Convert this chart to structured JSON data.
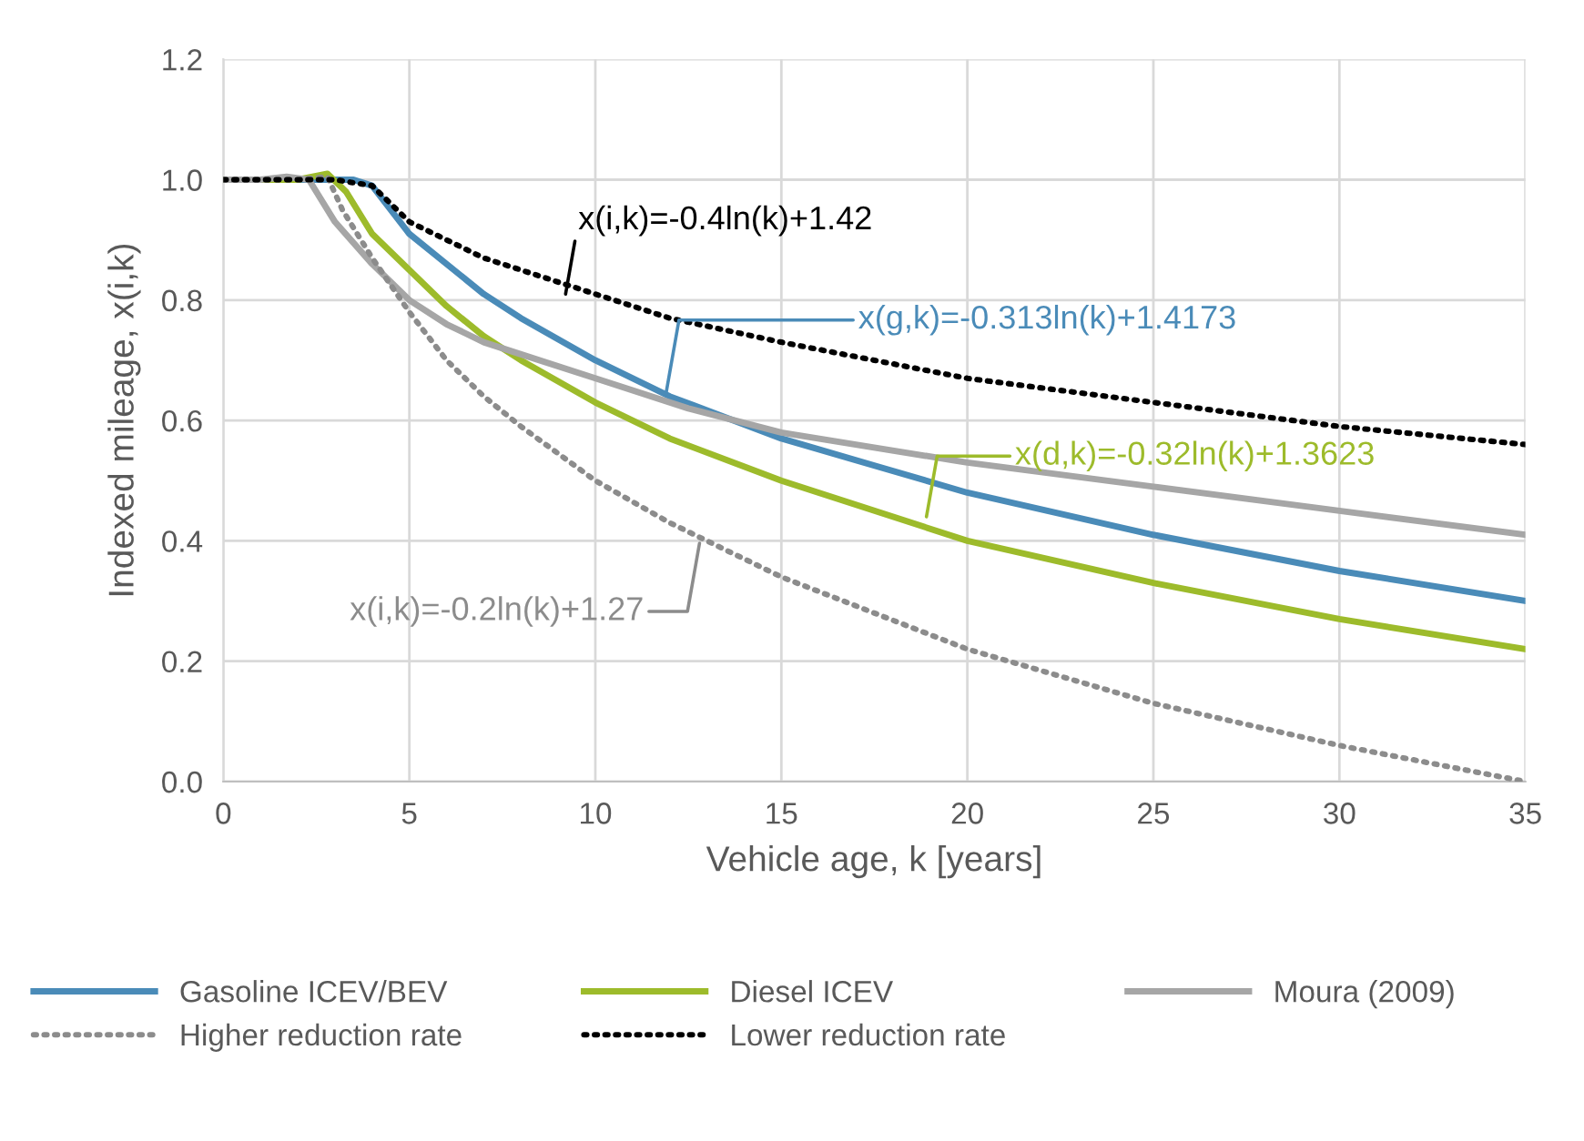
{
  "chart_data": {
    "type": "line",
    "xlabel": "Vehicle age, k [years]",
    "ylabel": "Indexed mileage, x(i,k)",
    "xlim": [
      0,
      35
    ],
    "ylim": [
      0.0,
      1.2
    ],
    "xticks": [
      0,
      5,
      10,
      15,
      20,
      25,
      30,
      35
    ],
    "yticks": [
      {
        "value": 0,
        "label": "0.0"
      },
      0.2,
      0.4,
      0.6,
      0.8,
      {
        "value": 1,
        "label": "1.0"
      },
      1.2
    ],
    "grid": true,
    "legend": "bottom",
    "marker": "none",
    "series": [
      {
        "name": "Gasoline ICEV/BEV",
        "color": "#4a8bb8",
        "line_style": "solid",
        "x": [
          0,
          1,
          2,
          3,
          3.5,
          4,
          4.5,
          5,
          6,
          7,
          8,
          10,
          12,
          15,
          20,
          25,
          30,
          35
        ],
        "values": [
          1.0,
          1.0,
          1.0,
          1.0,
          1.0,
          0.99,
          0.95,
          0.91,
          0.86,
          0.81,
          0.77,
          0.7,
          0.64,
          0.57,
          0.48,
          0.41,
          0.35,
          0.3
        ]
      },
      {
        "name": "Diesel ICEV",
        "color": "#9dbb2b",
        "line_style": "solid",
        "x": [
          0,
          1,
          2,
          2.8,
          3.3,
          4,
          5,
          6,
          7,
          8,
          10,
          12,
          15,
          20,
          25,
          30,
          35
        ],
        "values": [
          1.0,
          1.0,
          1.0,
          1.01,
          0.98,
          0.91,
          0.85,
          0.79,
          0.74,
          0.7,
          0.63,
          0.57,
          0.5,
          0.4,
          0.33,
          0.27,
          0.22
        ]
      },
      {
        "name": "Moura (2009)",
        "color": "#a6a6a6",
        "line_style": "solid",
        "x": [
          0,
          1,
          1.7,
          2.3,
          3,
          4,
          5,
          6,
          7,
          8,
          10,
          12.5,
          15,
          20,
          25,
          30,
          35
        ],
        "values": [
          1.0,
          1.0,
          1.005,
          1.0,
          0.93,
          0.86,
          0.8,
          0.76,
          0.73,
          0.71,
          0.67,
          0.62,
          0.58,
          0.53,
          0.49,
          0.45,
          0.41
        ]
      },
      {
        "name": "Higher reduction rate",
        "color": "#8c8c8c",
        "line_style": "dotted",
        "x": [
          0,
          1,
          2,
          2.8,
          3.2,
          3.5,
          4,
          5,
          6,
          7,
          8,
          10,
          12,
          15,
          20,
          25,
          30,
          35
        ],
        "values": [
          1.0,
          1.0,
          1.0,
          1.005,
          0.95,
          0.92,
          0.87,
          0.78,
          0.7,
          0.64,
          0.59,
          0.5,
          0.43,
          0.34,
          0.22,
          0.13,
          0.06,
          0.0
        ]
      },
      {
        "name": "Lower reduction rate",
        "color": "#000000",
        "line_style": "dotted",
        "x": [
          0,
          1,
          2,
          3,
          4,
          5,
          6,
          7,
          8,
          10,
          12,
          15,
          20,
          25,
          30,
          35
        ],
        "values": [
          1.0,
          1.0,
          1.0,
          1.0,
          0.99,
          0.93,
          0.9,
          0.87,
          0.85,
          0.81,
          0.77,
          0.73,
          0.67,
          0.63,
          0.59,
          0.56
        ]
      }
    ],
    "annotations": [
      {
        "text": "x(i,k)=-0.4ln(k)+1.42",
        "x": 9.2,
        "y": 0.81
      },
      {
        "text": "x(g,k)=-0.313ln(k)+1.4173",
        "x": 11.9,
        "y": 0.645
      },
      {
        "text": "x(d,k)=-0.32ln(k)+1.3623",
        "x": 18.9,
        "y": 0.44
      },
      {
        "text": "x(i,k)=-0.2ln(k)+1.27",
        "x": 12.8,
        "y": 0.396
      }
    ]
  }
}
